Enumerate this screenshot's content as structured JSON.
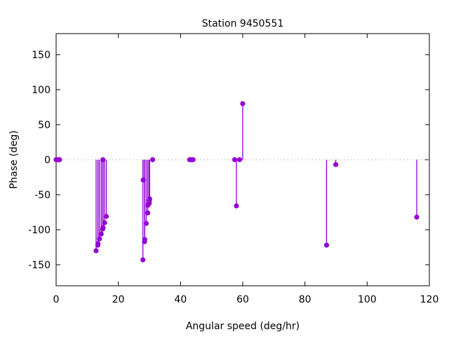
{
  "chart_data": {
    "type": "scatter",
    "style": "impulses-with-points",
    "title": "Station 9450551",
    "xlabel": "Angular speed (deg/hr)",
    "ylabel": "Phase (deg)",
    "xlim": [
      0,
      120
    ],
    "ylim": [
      -180,
      180
    ],
    "xticks": [
      0,
      20,
      40,
      60,
      80,
      100,
      120
    ],
    "yticks": [
      -150,
      -100,
      -50,
      0,
      50,
      100,
      150
    ],
    "color": "#9400d3",
    "zero_line": true,
    "points": [
      {
        "x": 0.0,
        "y": 0
      },
      {
        "x": 0.04,
        "y": 0
      },
      {
        "x": 0.08,
        "y": 0
      },
      {
        "x": 0.54,
        "y": 0
      },
      {
        "x": 1.02,
        "y": 0
      },
      {
        "x": 1.1,
        "y": 0
      },
      {
        "x": 12.85,
        "y": -130
      },
      {
        "x": 13.4,
        "y": -122
      },
      {
        "x": 13.47,
        "y": -120
      },
      {
        "x": 13.94,
        "y": -113
      },
      {
        "x": 14.5,
        "y": -106
      },
      {
        "x": 14.96,
        "y": -99
      },
      {
        "x": 15.04,
        "y": 0
      },
      {
        "x": 15.1,
        "y": -97
      },
      {
        "x": 15.59,
        "y": -90
      },
      {
        "x": 16.14,
        "y": -81
      },
      {
        "x": 27.9,
        "y": -143
      },
      {
        "x": 27.97,
        "y": -29
      },
      {
        "x": 28.44,
        "y": -117
      },
      {
        "x": 28.51,
        "y": -114
      },
      {
        "x": 28.98,
        "y": -91
      },
      {
        "x": 29.46,
        "y": -76
      },
      {
        "x": 29.53,
        "y": -65
      },
      {
        "x": 29.96,
        "y": -62
      },
      {
        "x": 30.0,
        "y": -58
      },
      {
        "x": 30.08,
        "y": -56
      },
      {
        "x": 31.02,
        "y": 0
      },
      {
        "x": 42.93,
        "y": 0
      },
      {
        "x": 43.48,
        "y": 0
      },
      {
        "x": 44.03,
        "y": 0
      },
      {
        "x": 57.42,
        "y": 0
      },
      {
        "x": 57.97,
        "y": -66
      },
      {
        "x": 58.98,
        "y": 0
      },
      {
        "x": 59.99,
        "y": 80
      },
      {
        "x": 86.95,
        "y": -122
      },
      {
        "x": 89.9,
        "y": -7
      },
      {
        "x": 115.94,
        "y": -82
      }
    ]
  }
}
